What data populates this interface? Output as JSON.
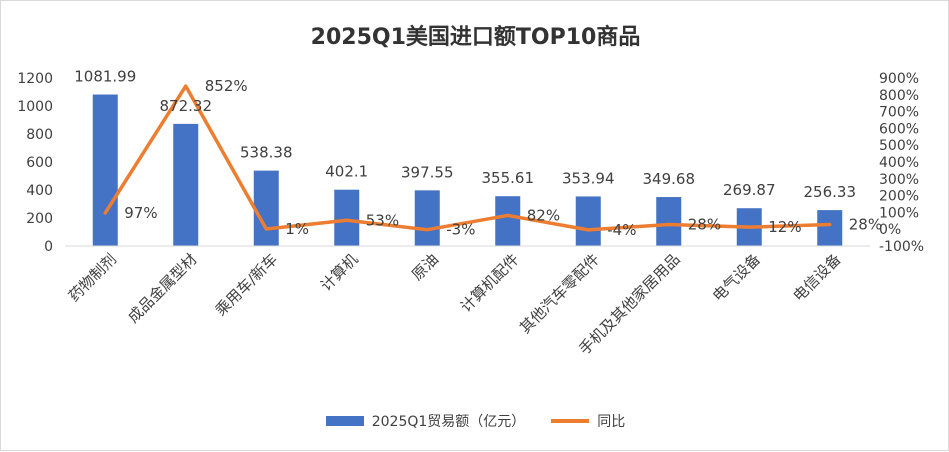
{
  "chart_data": {
    "type": "bar+line",
    "title": "2025Q1美国进口额TOP10商品",
    "categories": [
      "药物制剂",
      "成品金属型材",
      "乘用车/新车",
      "计算机",
      "原油",
      "计算机配件",
      "其他汽车零配件",
      "手机及其他家居用品",
      "电气设备",
      "电信设备"
    ],
    "series": [
      {
        "name": "2025Q1贸易额（亿元）",
        "type": "bar",
        "axis": "left",
        "color": "#4472C4",
        "values": [
          1081.99,
          872.32,
          538.38,
          402.1,
          397.55,
          355.61,
          353.94,
          349.68,
          269.87,
          256.33
        ],
        "labels": [
          "1081.99",
          "872.32",
          "538.38",
          "402.1",
          "397.55",
          "355.61",
          "353.94",
          "349.68",
          "269.87",
          "256.33"
        ]
      },
      {
        "name": "同比",
        "type": "line",
        "axis": "right",
        "color": "#ED7D31",
        "values": [
          97,
          852,
          1,
          53,
          -3,
          82,
          -4,
          28,
          12,
          28
        ],
        "labels": [
          "97%",
          "852%",
          "1%",
          "53%",
          "-3%",
          "82%",
          "-4%",
          "28%",
          "12%",
          "28%"
        ]
      }
    ],
    "y_left": {
      "min": 0,
      "max": 1200,
      "ticks": [
        "0",
        "200",
        "400",
        "600",
        "800",
        "1000",
        "1200"
      ]
    },
    "y_right": {
      "min": -100,
      "max": 900,
      "ticks": [
        "-100%",
        "0%",
        "100%",
        "200%",
        "300%",
        "400%",
        "500%",
        "600%",
        "700%",
        "800%",
        "900%"
      ]
    },
    "grid": false,
    "legend": "bottom"
  }
}
